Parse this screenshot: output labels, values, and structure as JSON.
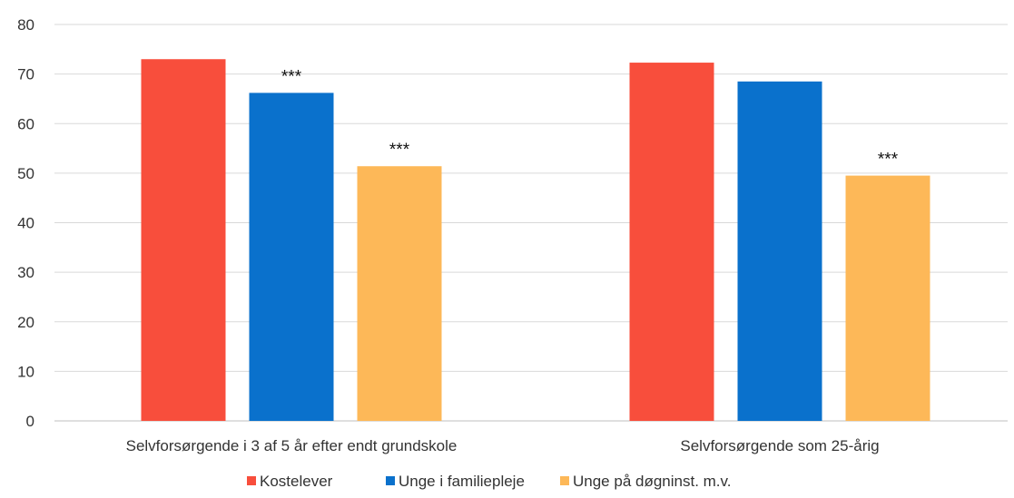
{
  "chart_data": {
    "type": "bar",
    "categories": [
      "Selvforsørgende i 3 af 5 år efter endt grundskole",
      "Selvforsørgende som 25-årig"
    ],
    "series": [
      {
        "name": "Kostelever",
        "color": "#f84e3c",
        "values": [
          73,
          72.3
        ],
        "annotations": [
          "",
          ""
        ]
      },
      {
        "name": "Unge i familiepleje",
        "color": "#0a71cc",
        "values": [
          66.2,
          68.5
        ],
        "annotations": [
          "***",
          ""
        ]
      },
      {
        "name": "Unge på døgninst. m.v.",
        "color": "#fdb858",
        "values": [
          51.4,
          49.5
        ],
        "annotations": [
          "***",
          "***"
        ]
      }
    ],
    "title": "",
    "xlabel": "",
    "ylabel": "",
    "ylim": [
      0,
      80
    ],
    "yticks": [
      0,
      10,
      20,
      30,
      40,
      50,
      60,
      70,
      80
    ],
    "grid": true,
    "legend_position": "bottom"
  }
}
